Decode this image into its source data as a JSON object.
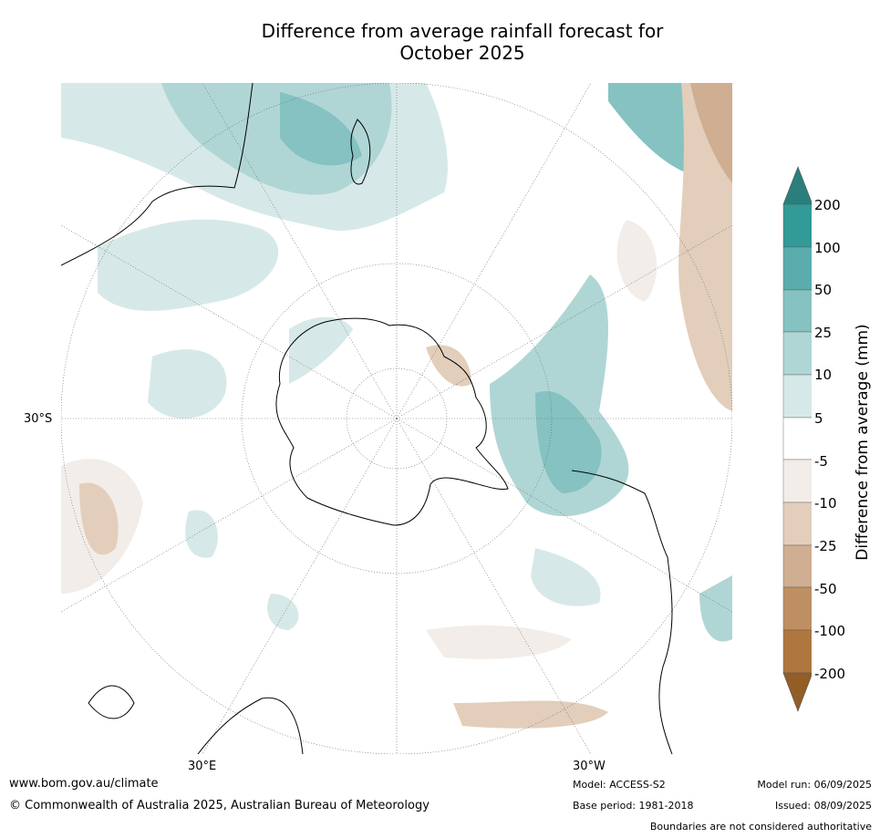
{
  "title_line1": "Difference from average rainfall forecast for",
  "title_line2": "October 2025",
  "map": {
    "projection": "south-polar-stereographic",
    "lat_label_left": "30°S",
    "lon_label_bottom_left": "30°E",
    "lon_label_bottom_right": "30°W"
  },
  "colorbar": {
    "title": "Difference from average (mm)",
    "ticks": [
      "200",
      "100",
      "50",
      "25",
      "10",
      "5",
      "-5",
      "-10",
      "-25",
      "-50",
      "-100",
      "-200"
    ],
    "colors": {
      "gt200": "#2a7f7c",
      "100_200": "#329a97",
      "50_100": "#5aacad",
      "25_50": "#85c2c1",
      "10_25": "#afd6d5",
      "5_10": "#d6e9e8",
      "m5_5": "#ffffff",
      "m10_m5": "#f2ede8",
      "m25_m10": "#e2cebb",
      "m50_m25": "#cfae91",
      "m100_m50": "#be8f63",
      "m200_m100": "#ae7740",
      "lt_m200": "#925e26"
    }
  },
  "footer": {
    "website": "www.bom.gov.au/climate",
    "copyright": "© Commonwealth of Australia 2025, Australian Bureau of Meteorology",
    "model": "Model: ACCESS-S2",
    "base_period": "Base period: 1981-2018",
    "model_run": "Model run: 06/09/2025",
    "issued": "Issued: 08/09/2025",
    "disclaimer": "Boundaries are not considered authoritative"
  }
}
